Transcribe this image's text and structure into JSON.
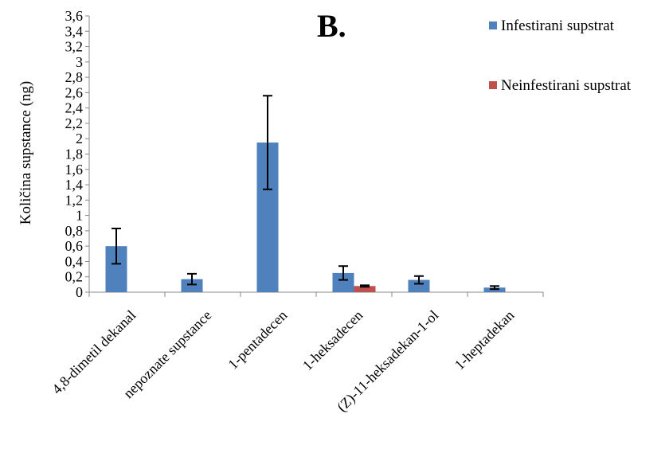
{
  "chart_data": {
    "type": "bar",
    "title": "B.",
    "ylabel": "Količina supstance (ng)",
    "xlabel": "",
    "ylim": [
      0,
      3.6
    ],
    "yticks": [
      "0",
      "0,2",
      "0,4",
      "0,6",
      "0,8",
      "1",
      "1,2",
      "1,4",
      "1,6",
      "1,8",
      "2",
      "2,2",
      "2,4",
      "2,6",
      "2,8",
      "3",
      "3,2",
      "3,4",
      "3,6"
    ],
    "categories": [
      "4,8-dimetil dekanal",
      "nepoznate supstance",
      "1-pentadecen",
      "1-heksadecen",
      "(Z)-11-heksadekan-1-ol",
      "1-heptadekan"
    ],
    "series": [
      {
        "name": "Infestirani supstrat",
        "color": "#4f81bd",
        "values": [
          0.6,
          0.17,
          1.95,
          0.25,
          0.16,
          0.06
        ],
        "error": [
          0.23,
          0.07,
          0.61,
          0.09,
          0.05,
          0.02
        ]
      },
      {
        "name": "Neinfestirani supstrat",
        "color": "#c0504d",
        "values": [
          null,
          null,
          null,
          0.08,
          null,
          null
        ],
        "error": [
          null,
          null,
          null,
          0.01,
          null,
          null
        ]
      }
    ],
    "grid": false,
    "legend": "top-right"
  }
}
